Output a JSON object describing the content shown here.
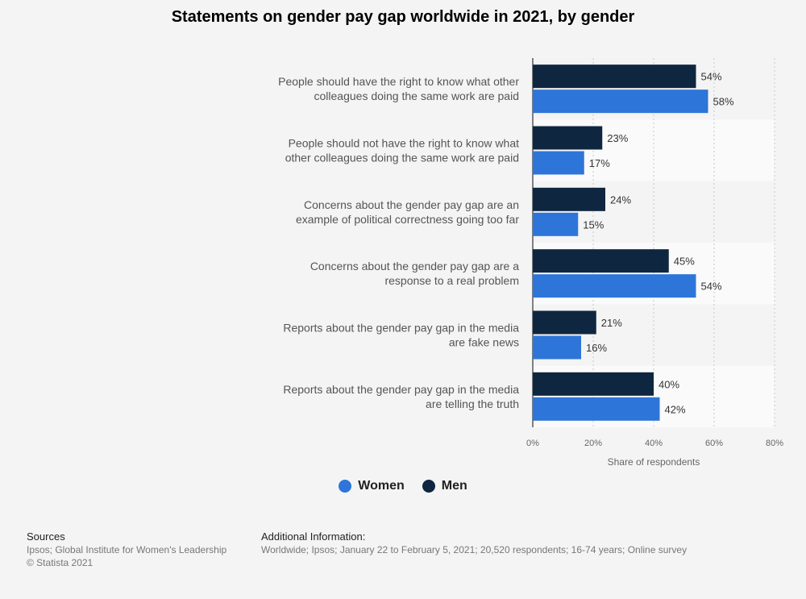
{
  "chart_data": {
    "type": "bar",
    "orientation": "horizontal",
    "title": "Statements on gender pay gap worldwide in 2021, by gender",
    "categories": [
      [
        "People should have the right to know what other",
        "colleagues doing the same work are paid"
      ],
      [
        "People should not have the right to know what",
        "other colleagues doing the same work are paid"
      ],
      [
        "Concerns about the gender pay gap are an",
        "example of political correctness going too far"
      ],
      [
        "Concerns about the gender pay gap are a",
        "response to a real problem"
      ],
      [
        "Reports about the gender pay gap in the media",
        "are fake news"
      ],
      [
        "Reports about the gender pay gap in the media",
        "are telling the truth"
      ]
    ],
    "series": [
      {
        "name": "Men",
        "color": "#0f2640",
        "values": [
          54,
          23,
          24,
          45,
          21,
          40
        ]
      },
      {
        "name": "Women",
        "color": "#2e75d9",
        "values": [
          58,
          17,
          15,
          54,
          16,
          42
        ]
      }
    ],
    "value_suffix": "%",
    "xlabel": "Share of respondents",
    "xlim": [
      0,
      80
    ],
    "xticks": [
      "0%",
      "20%",
      "40%",
      "60%",
      "80%"
    ],
    "grid": true,
    "legend_position": "bottom-center"
  },
  "legend": [
    {
      "label": "Women",
      "color": "#2e75d9"
    },
    {
      "label": "Men",
      "color": "#0f2640"
    }
  ],
  "footer": {
    "sources_heading": "Sources",
    "sources_line1": "Ipsos; Global Institute for Women's Leadership",
    "sources_line2": "© Statista 2021",
    "info_heading": "Additional Information:",
    "info_text": "Worldwide; Ipsos; January 22 to February 5, 2021; 20,520 respondents; 16-74 years; Online survey"
  }
}
